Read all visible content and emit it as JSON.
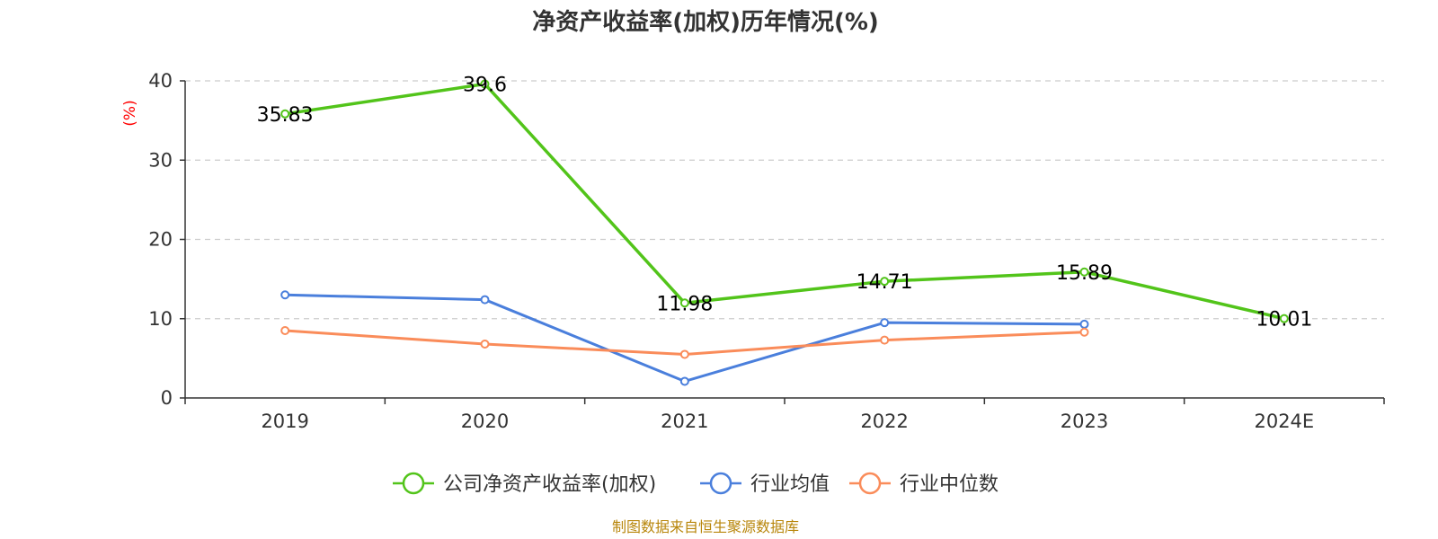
{
  "chart_data": {
    "type": "line",
    "title": "净资产收益率(加权)历年情况(%)",
    "ylabel": "(%)",
    "xlabel": "",
    "categories": [
      "2019",
      "2020",
      "2021",
      "2022",
      "2023",
      "2024E"
    ],
    "ylim": [
      0,
      40
    ],
    "yticks": [
      0,
      10,
      20,
      30,
      40
    ],
    "grid": true,
    "legend_position": "bottom",
    "series": [
      {
        "name": "公司净资产收益率(加权)",
        "color": "#52c41a",
        "values": [
          35.83,
          39.6,
          11.98,
          14.71,
          15.89,
          10.01
        ],
        "labels": [
          "35.83",
          "39.6",
          "11.98",
          "14.71",
          "15.89",
          "10.01"
        ]
      },
      {
        "name": "行业均值",
        "color": "#4a7fdc",
        "values": [
          13.0,
          12.4,
          2.1,
          9.5,
          9.3,
          null
        ]
      },
      {
        "name": "行业中位数",
        "color": "#fa8c5a",
        "values": [
          8.5,
          6.8,
          5.5,
          7.3,
          8.3,
          null
        ]
      }
    ],
    "source": "制图数据来自恒生聚源数据库"
  }
}
